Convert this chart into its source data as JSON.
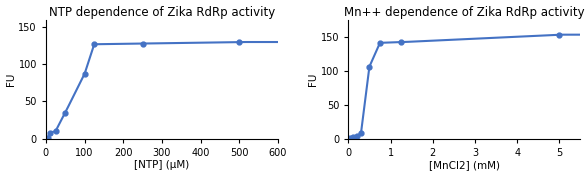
{
  "plot1": {
    "title": "NTP dependence of Zika RdRp activity",
    "xlabel": "[NTP] (μM)",
    "ylabel": "FU",
    "x": [
      5,
      10,
      25,
      50,
      100,
      125,
      250,
      500
    ],
    "y": [
      1.5,
      8,
      10,
      35,
      87,
      127,
      128,
      130
    ],
    "xlim": [
      0,
      600
    ],
    "ylim": [
      0,
      160
    ],
    "xticks": [
      0,
      100,
      200,
      300,
      400,
      500,
      600
    ],
    "yticks": [
      0,
      50,
      100,
      150
    ]
  },
  "plot2": {
    "title": "Mn++ dependence of Zika RdRp activity",
    "xlabel": "[MnCl2] (mM)",
    "ylabel": "FU",
    "x": [
      0.05,
      0.1,
      0.2,
      0.3,
      0.5,
      0.75,
      1.25,
      5.0
    ],
    "y": [
      1.5,
      2.5,
      3.5,
      8,
      106,
      141,
      142,
      153
    ],
    "xlim": [
      0,
      5.5
    ],
    "ylim": [
      0,
      175
    ],
    "xticks": [
      0,
      1,
      2,
      3,
      4,
      5
    ],
    "yticks": [
      0,
      50,
      100,
      150
    ]
  },
  "line_color": "#4472C4",
  "marker": "o",
  "markersize": 3.5,
  "linewidth": 1.5,
  "title_fontsize": 8.5,
  "label_fontsize": 7.5,
  "tick_fontsize": 7
}
